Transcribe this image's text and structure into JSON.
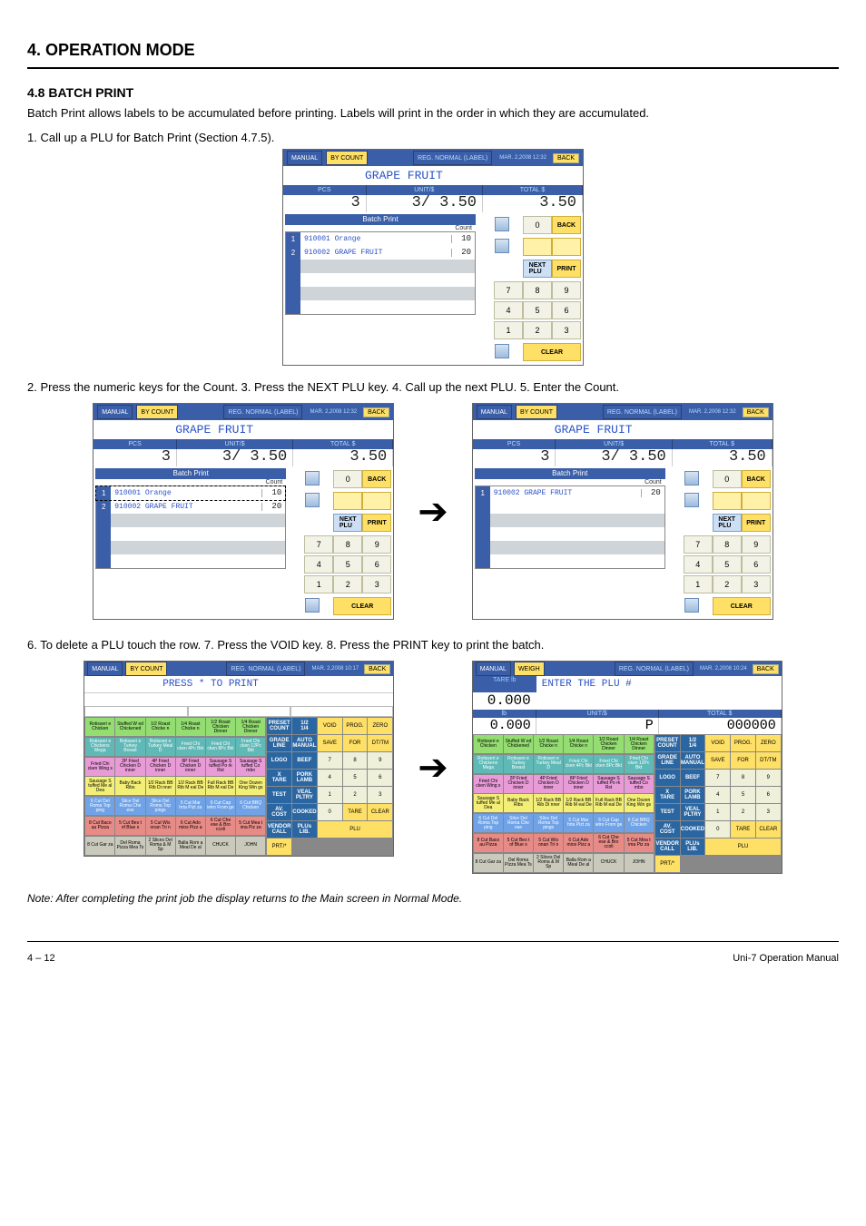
{
  "doc": {
    "chapter_title": "4.  OPERATION MODE",
    "section_title": "4.8  BATCH PRINT",
    "intro": "Batch Print allows labels to be accumulated before printing.  Labels will print in the order in which they are accumulated.",
    "steps": [
      "1.   Call up a PLU for Batch Print (Section 4.7.5).",
      "2.   Press the numeric keys for the Count.  3.   Press the NEXT PLU key.  4.   Call up the next PLU.  5.   Enter the Count.",
      "6.   To delete a PLU touch the row.  7.   Press the VOID key.  8.   Press the PRINT key to print the batch."
    ],
    "note": "Note:   After completing the print job the display returns to the Main screen in Normal Mode."
  },
  "screen_main": {
    "tabs": [
      "MANUAL",
      "BY COUNT"
    ],
    "reg": "REG. NORMAL\\n(LABEL)",
    "date": "MAR. 2,2008\\n12:32",
    "plu": "GRAPE FRUIT",
    "col_headers": [
      "PCS",
      "UNIT/$",
      "TOTAL $"
    ],
    "pcs": "3",
    "unit": "3/    3.50",
    "total": "3.50",
    "batch_title": "Batch Print",
    "count_label": "Count",
    "rows": [
      {
        "idx": "1",
        "desc": "910001 Orange",
        "cnt": "10"
      },
      {
        "idx": "2",
        "desc": "910002 GRAPE FRUIT",
        "cnt": "20"
      }
    ],
    "top_count": "0",
    "keys": {
      "back": "BACK",
      "next": "NEXT\\nPLU",
      "print": "PRINT",
      "clear": "CLEAR"
    },
    "pad": [
      "7",
      "8",
      "9",
      "4",
      "5",
      "6",
      "1",
      "2",
      "3",
      "0"
    ]
  },
  "screen_after": {
    "rows": [
      {
        "idx": "1",
        "desc": "910002 GRAPE FRUIT",
        "cnt": "20"
      }
    ]
  },
  "op_left": {
    "tabs": [
      "MANUAL",
      "BY COUNT"
    ],
    "date": "MAR. 2,2008\\n10:17",
    "hint": "PRESS * TO PRINT",
    "funcs": [
      [
        "PRESET\\nCOUNT",
        "1/2\\n1/4",
        "VOID",
        "PROG.",
        "ZERO"
      ],
      [
        "GRADE\\nLINE",
        "AUTO\\nMANUAL",
        "SAVE",
        "FOR",
        "DT/TM"
      ],
      [
        "LOGO",
        "BEEF",
        "7",
        "8",
        "9"
      ],
      [
        "X\\nTARE",
        "PORK\\nLAMB",
        "4",
        "5",
        "6"
      ],
      [
        "TEST",
        "VEAL\\nPLTRY",
        "1",
        "2",
        "3"
      ],
      [
        "AV.\\nCOST",
        "COOKED",
        "0",
        "TARE",
        "CLEAR"
      ],
      [
        "VENDOR\\nCALL",
        "PLUs\\nLIB.",
        "PLU",
        "",
        "PRT/*"
      ]
    ]
  },
  "op_right": {
    "tabs": [
      "MANUAL",
      "WEIGH"
    ],
    "date": "MAR. 2,2008\\n10:24",
    "hint": "ENTER THE PLU #",
    "tare_label": "TARE lb",
    "tare": "0.000",
    "cols": [
      "lb",
      "UNIT/$",
      "TOTAL $"
    ],
    "lb": "0.000",
    "unit": "P",
    "total": "000000"
  },
  "preset_rows": [
    [
      "Rotisseri e Chicken",
      "Stuffed W ed Chickened",
      "1/2 Roast Chicke n",
      "1/4 Roast Chicke n",
      "1/2 Roast Chicken Dinner",
      "1/4 Roast Chicken Dinner"
    ],
    [
      "Rotisseri e Chickens Mega",
      "Rotisseri e Turkey Breast",
      "Rotisseri e Turkey Meal D",
      "Fried Chi cken 4Pc Bkt",
      "Fried Chi cken 8Pc Bkt",
      "Fried Chi cken 12Pc Bkt"
    ],
    [
      "Fried Chi cken Wing s",
      "2P Fried Chicken D inner",
      "4P Fried Chicken D inner",
      "8P Fried Chicken D inner",
      "Sausage S tuffed Po rk Rst",
      "Sausage S tuffed Co mbo"
    ],
    [
      "Sausage S tuffed Me al Dea",
      "Baby Back Ribs",
      "1/2 Rack BB Rib Di nner",
      "1/2 Rack BB Rib M eal De",
      "Full Rack BB Rib M eal De",
      "One Dozen King Win gs"
    ],
    [
      "6 Cut Del Roma Top ping",
      "Slice Del Roma Che ese",
      "Slice Del Roma Top pings",
      "5 Cut Mar hrta Pizt za",
      "6 Cut Cap ietro From ge",
      "6 Cut BBQ Chicken"
    ],
    [
      "8 Cut Baco au Pizza",
      "5 Cut Bes t of Blue s",
      "5 Cut Wis onan Tri n",
      "6 Cut Ado mios Pizz a",
      "6 Cut Che ese & Bro ccoli",
      "5 Cut Mea t ima Piz za"
    ],
    [
      "8 Cut Gar za",
      "Del Roma Pizza Mea Ts",
      "2 Slices Del Roma & M Sp",
      "Balla Rom a Meal De al",
      "CHUCK",
      "JOHN"
    ]
  ],
  "preset_row_styles": [
    "pg",
    "pb",
    "pp",
    "py",
    "pbl",
    "pr",
    "pgr"
  ],
  "footer_left": "4 – 12",
  "footer_right": "Uni-7 Operation Manual"
}
